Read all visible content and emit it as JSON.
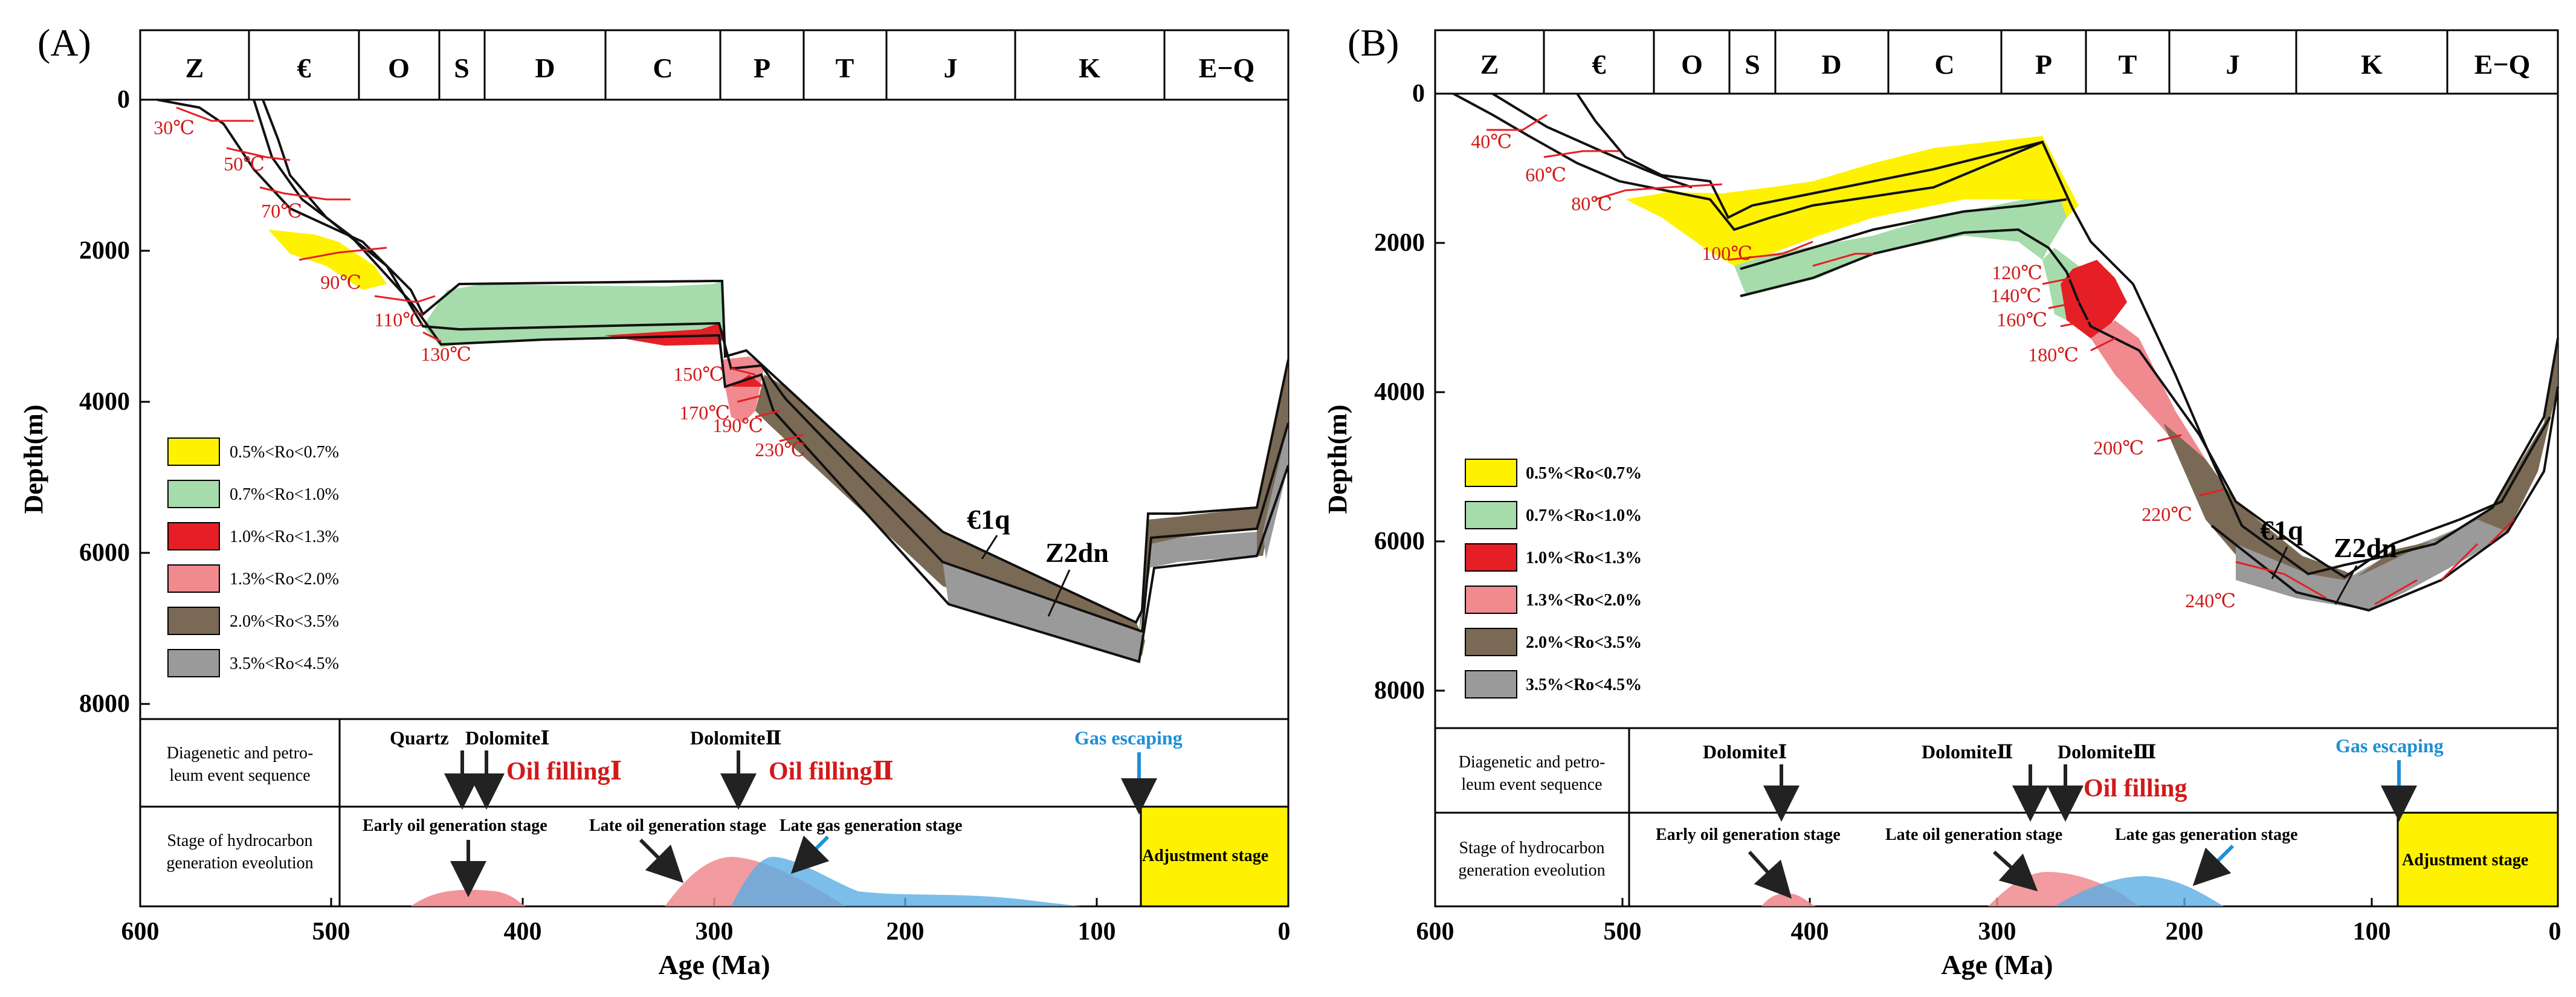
{
  "panels": [
    {
      "id": "A",
      "label": "(A)",
      "periods": [
        "Z",
        "€",
        "O",
        "S",
        "D",
        "C",
        "P",
        "T",
        "J",
        "K",
        "E−Q"
      ],
      "y_axis": {
        "label": "Depth(m)",
        "ticks": [
          "0",
          "2000",
          "4000",
          "6000",
          "8000"
        ]
      },
      "x_axis": {
        "label": "Age (Ma)",
        "ticks": [
          "600",
          "500",
          "400",
          "300",
          "200",
          "100",
          "0"
        ]
      },
      "temperatures": [
        "30℃",
        "50℃",
        "70℃",
        "90℃",
        "110℃",
        "130℃",
        "150℃",
        "170℃",
        "190℃",
        "230℃"
      ],
      "formations": [
        "€1q",
        "Z2dn"
      ],
      "legend": [
        {
          "label": "0.5%<Ro<0.7%",
          "color": "#fff200"
        },
        {
          "label": "0.7%<Ro<1.0%",
          "color": "#a6dcab"
        },
        {
          "label": "1.0%<Ro<1.3%",
          "color": "#e61e25"
        },
        {
          "label": "1.3%<Ro<2.0%",
          "color": "#f08a8f"
        },
        {
          "label": "2.0%<Ro<3.5%",
          "color": "#7a6a55"
        },
        {
          "label": "3.5%<Ro<4.5%",
          "color": "#9a9a9a"
        }
      ],
      "event_row_label": "Diagenetic and petro-leum event sequence",
      "stage_row_label": "Stage of hydrocarbon generation eveolution",
      "events": [
        "Quartz",
        "DolomiteⅠ",
        "Oil fillingⅠ",
        "DolomiteⅡ",
        "Oil fillingⅡ",
        "Gas escaping"
      ],
      "stages": [
        "Early oil generation stage",
        "Late oil generation stage",
        "Late gas generation stage",
        "Adjustment stage"
      ]
    },
    {
      "id": "B",
      "label": "(B)",
      "periods": [
        "Z",
        "€",
        "O",
        "S",
        "D",
        "C",
        "P",
        "T",
        "J",
        "K",
        "E−Q"
      ],
      "y_axis": {
        "label": "Depth(m)",
        "ticks": [
          "0",
          "2000",
          "4000",
          "6000",
          "8000"
        ]
      },
      "x_axis": {
        "label": "Age (Ma)",
        "ticks": [
          "600",
          "500",
          "400",
          "300",
          "200",
          "100",
          "0"
        ]
      },
      "temperatures": [
        "40℃",
        "60℃",
        "80℃",
        "100℃",
        "120℃",
        "140℃",
        "160℃",
        "180℃",
        "200℃",
        "220℃",
        "240℃"
      ],
      "formations": [
        "€1q",
        "Z2dn"
      ],
      "legend": [
        {
          "label": "0.5%<Ro<0.7%",
          "color": "#fff200"
        },
        {
          "label": "0.7%<Ro<1.0%",
          "color": "#a6dcab"
        },
        {
          "label": "1.0%<Ro<1.3%",
          "color": "#e61e25"
        },
        {
          "label": "1.3%<Ro<2.0%",
          "color": "#f08a8f"
        },
        {
          "label": "2.0%<Ro<3.5%",
          "color": "#7a6a55"
        },
        {
          "label": "3.5%<Ro<4.5%",
          "color": "#9a9a9a"
        }
      ],
      "event_row_label": "Diagenetic and petro-leum event sequence",
      "stage_row_label": "Stage of hydrocarbon generation eveolution",
      "events": [
        "DolomiteⅠ",
        "DolomiteⅡ",
        "DolomiteⅢ",
        "Oil filling",
        "Gas escaping"
      ],
      "stages": [
        "Early oil generation stage",
        "Late oil generation stage",
        "Late gas generation stage",
        "Adjustment stage"
      ]
    }
  ]
}
